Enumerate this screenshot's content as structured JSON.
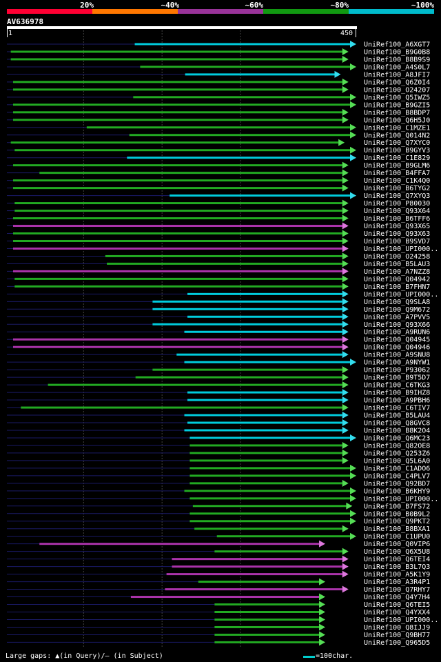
{
  "legend": {
    "labels": [
      "20%",
      "~40%",
      "~60%",
      "~80%",
      "~100%"
    ],
    "colors": [
      "#ff0033",
      "#ff7700",
      "#993399",
      "#119911",
      "#00bbcc"
    ]
  },
  "query": {
    "id": "AV636978",
    "start": "1",
    "end": "450"
  },
  "footer": {
    "gaps_text": "Large gaps: ▲(in Query)/– (in Subject)",
    "scale_text": "=100char."
  },
  "chart_data": {
    "type": "alignment",
    "title": "AV636978",
    "query_length": 450,
    "color_legend": [
      "20%",
      "~40%",
      "~60%",
      "~80%",
      "~100%"
    ],
    "hits": [
      {
        "label": "UniRef100_A6XGT7",
        "start": 165,
        "end": 450,
        "color": "cyan",
        "arrow": "cyan"
      },
      {
        "label": "UniRef100_B9G0B8",
        "start": 5,
        "end": 440,
        "color": "green",
        "arrow": "green"
      },
      {
        "label": "UniRef100_B8B9S9",
        "start": 5,
        "end": 440,
        "color": "green",
        "arrow": "green"
      },
      {
        "label": "UniRef100_A4S0L7",
        "start": 172,
        "end": 450,
        "color": "green",
        "arrow": "green"
      },
      {
        "label": "UniRef100_A8JFI7",
        "start": 230,
        "end": 430,
        "color": "cyan",
        "arrow": "cyan"
      },
      {
        "label": "UniRef100_Q6Z0I4",
        "start": 8,
        "end": 440,
        "color": "green",
        "arrow": "green"
      },
      {
        "label": "UniRef100_O24207",
        "start": 8,
        "end": 440,
        "color": "green",
        "arrow": "green"
      },
      {
        "label": "UniRef100_Q5IWZ5",
        "start": 163,
        "end": 450,
        "color": "green",
        "arrow": "green"
      },
      {
        "label": "UniRef100_B9GZI5",
        "start": 8,
        "end": 450,
        "color": "green",
        "arrow": "green"
      },
      {
        "label": "UniRef100_B8BDP7",
        "start": 8,
        "end": 440,
        "color": "green",
        "arrow": "green"
      },
      {
        "label": "UniRef100_Q6H5J0",
        "start": 8,
        "end": 440,
        "color": "green",
        "arrow": "green"
      },
      {
        "label": "UniRef100_C1MZE1",
        "start": 103,
        "end": 450,
        "color": "green",
        "arrow": "green"
      },
      {
        "label": "UniRef100_Q014N2",
        "start": 158,
        "end": 450,
        "color": "green",
        "arrow": "green"
      },
      {
        "label": "UniRef100_Q7XYC0",
        "start": 5,
        "end": 435,
        "color": "green",
        "arrow": "green"
      },
      {
        "label": "UniRef100_B9GYV3",
        "start": 10,
        "end": 450,
        "color": "green",
        "arrow": "green"
      },
      {
        "label": "UniRef100_C1E829",
        "start": 155,
        "end": 450,
        "color": "cyan",
        "arrow": "cyan"
      },
      {
        "label": "UniRef100_B9GLM6",
        "start": 8,
        "end": 440,
        "color": "green",
        "arrow": "green"
      },
      {
        "label": "UniRef100_B4FFA7",
        "start": 42,
        "end": 440,
        "color": "green",
        "arrow": "green"
      },
      {
        "label": "UniRef100_C1K4Q0",
        "start": 8,
        "end": 440,
        "color": "green",
        "arrow": "green"
      },
      {
        "label": "UniRef100_B6TYG2",
        "start": 8,
        "end": 440,
        "color": "green",
        "arrow": "green"
      },
      {
        "label": "UniRef100_Q7XYQ3",
        "start": 210,
        "end": 450,
        "color": "cyan",
        "arrow": "cyan"
      },
      {
        "label": "UniRef100_P80030",
        "start": 10,
        "end": 440,
        "color": "green",
        "arrow": "green"
      },
      {
        "label": "UniRef100_Q93X64",
        "start": 10,
        "end": 440,
        "color": "green",
        "arrow": "green"
      },
      {
        "label": "UniRef100_B6TFF6",
        "start": 8,
        "end": 440,
        "color": "green",
        "arrow": "green"
      },
      {
        "label": "UniRef100_Q93X65",
        "start": 8,
        "end": 440,
        "color": "purple",
        "arrow": "purple"
      },
      {
        "label": "UniRef100_Q93X63",
        "start": 8,
        "end": 440,
        "color": "green",
        "arrow": "green"
      },
      {
        "label": "UniRef100_B9SVD7",
        "start": 8,
        "end": 440,
        "color": "green",
        "arrow": "green"
      },
      {
        "label": "UniRef100_UPI000..",
        "start": 8,
        "end": 440,
        "color": "purple",
        "arrow": "purple"
      },
      {
        "label": "UniRef100_O24258",
        "start": 127,
        "end": 440,
        "color": "green",
        "arrow": "green"
      },
      {
        "label": "UniRef100_B5LAU3",
        "start": 129,
        "end": 440,
        "color": "green",
        "arrow": "green"
      },
      {
        "label": "UniRef100_A7NZZ8",
        "start": 8,
        "end": 440,
        "color": "purple",
        "arrow": "purple"
      },
      {
        "label": "UniRef100_Q04942",
        "start": 10,
        "end": 440,
        "color": "green",
        "arrow": "green"
      },
      {
        "label": "UniRef100_B7FHN7",
        "start": 10,
        "end": 440,
        "color": "green",
        "arrow": "green"
      },
      {
        "label": "UniRef100_UPI000..",
        "start": 233,
        "end": 440,
        "color": "cyan",
        "arrow": "cyan"
      },
      {
        "label": "UniRef100_Q9SLA8",
        "start": 188,
        "end": 440,
        "color": "cyan",
        "arrow": "cyan"
      },
      {
        "label": "UniRef100_Q9M672",
        "start": 188,
        "end": 440,
        "color": "cyan",
        "arrow": "cyan"
      },
      {
        "label": "UniRef100_A7PVV5",
        "start": 233,
        "end": 440,
        "color": "cyan",
        "arrow": "cyan"
      },
      {
        "label": "UniRef100_Q93X66",
        "start": 188,
        "end": 440,
        "color": "cyan",
        "arrow": "cyan"
      },
      {
        "label": "UniRef100_A9RUN6",
        "start": 229,
        "end": 440,
        "color": "cyan",
        "arrow": "cyan"
      },
      {
        "label": "UniRef100_Q04945",
        "start": 8,
        "end": 440,
        "color": "purple",
        "arrow": "purple"
      },
      {
        "label": "UniRef100_Q04946",
        "start": 8,
        "end": 440,
        "color": "purple",
        "arrow": "purple"
      },
      {
        "label": "UniRef100_A9SNU8",
        "start": 219,
        "end": 440,
        "color": "cyan",
        "arrow": "cyan"
      },
      {
        "label": "UniRef100_A9NYW1",
        "start": 229,
        "end": 450,
        "color": "cyan",
        "arrow": "cyan"
      },
      {
        "label": "UniRef100_P93062",
        "start": 188,
        "end": 440,
        "color": "green",
        "arrow": "green"
      },
      {
        "label": "UniRef100_B9T5D7",
        "start": 166,
        "end": 440,
        "color": "green",
        "arrow": "green"
      },
      {
        "label": "UniRef100_C6TKG3",
        "start": 53,
        "end": 440,
        "color": "green",
        "arrow": "green"
      },
      {
        "label": "UniRef100_B9IHZ8",
        "start": 233,
        "end": 440,
        "color": "cyan",
        "arrow": "cyan"
      },
      {
        "label": "UniRef100_A9PBH6",
        "start": 233,
        "end": 440,
        "color": "cyan",
        "arrow": "cyan"
      },
      {
        "label": "UniRef100_C6TIV7",
        "start": 18,
        "end": 440,
        "color": "green",
        "arrow": "green"
      },
      {
        "label": "UniRef100_B5LAU4",
        "start": 229,
        "end": 440,
        "color": "cyan",
        "arrow": "cyan"
      },
      {
        "label": "UniRef100_Q8GVC8",
        "start": 233,
        "end": 440,
        "color": "cyan",
        "arrow": "cyan"
      },
      {
        "label": "UniRef100_B8K2O4",
        "start": 229,
        "end": 440,
        "color": "cyan",
        "arrow": "cyan"
      },
      {
        "label": "UniRef100_Q6MC23",
        "start": 236,
        "end": 450,
        "color": "cyan",
        "arrow": "cyan"
      },
      {
        "label": "UniRef100_Q82OE8",
        "start": 236,
        "end": 440,
        "color": "green",
        "arrow": "green"
      },
      {
        "label": "UniRef100_Q253Z6",
        "start": 236,
        "end": 440,
        "color": "green",
        "arrow": "green"
      },
      {
        "label": "UniRef100_Q5L6A0",
        "start": 236,
        "end": 440,
        "color": "green",
        "arrow": "green"
      },
      {
        "label": "UniRef100_C1ADO6",
        "start": 236,
        "end": 450,
        "color": "green",
        "arrow": "green"
      },
      {
        "label": "UniRef100_C4PLV7",
        "start": 236,
        "end": 450,
        "color": "green",
        "arrow": "green"
      },
      {
        "label": "UniRef100_Q92BD7",
        "start": 236,
        "end": 440,
        "color": "green",
        "arrow": "green"
      },
      {
        "label": "UniRef100_B6KHY9",
        "start": 229,
        "end": 450,
        "color": "green",
        "arrow": "green"
      },
      {
        "label": "UniRef100_UPI000..",
        "start": 236,
        "end": 450,
        "color": "green",
        "arrow": "green"
      },
      {
        "label": "UniRef100_B7FS72",
        "start": 240,
        "end": 445,
        "color": "green",
        "arrow": "green"
      },
      {
        "label": "UniRef100_B0B9L2",
        "start": 236,
        "end": 450,
        "color": "green",
        "arrow": "green"
      },
      {
        "label": "UniRef100_Q9PKT2",
        "start": 236,
        "end": 450,
        "color": "green",
        "arrow": "green"
      },
      {
        "label": "UniRef100_B8BXA1",
        "start": 242,
        "end": 440,
        "color": "green",
        "arrow": "green"
      },
      {
        "label": "UniRef100_C1UPU0",
        "start": 271,
        "end": 450,
        "color": "green",
        "arrow": "green"
      },
      {
        "label": "UniRef100_Q0VIP6",
        "start": 42,
        "end": 410,
        "color": "purple",
        "arrow": "purple"
      },
      {
        "label": "UniRef100_Q6X5U8",
        "start": 268,
        "end": 440,
        "color": "green",
        "arrow": "green"
      },
      {
        "label": "UniRef100_Q6TEI4",
        "start": 213,
        "end": 440,
        "color": "purple",
        "arrow": "purple"
      },
      {
        "label": "UniRef100_B3L7Q3",
        "start": 213,
        "end": 440,
        "color": "purple",
        "arrow": "purple"
      },
      {
        "label": "UniRef100_A5K1Y9",
        "start": 206,
        "end": 440,
        "color": "purple",
        "arrow": "purple"
      },
      {
        "label": "UniRef100_A3R4P1",
        "start": 247,
        "end": 410,
        "color": "green",
        "arrow": "green"
      },
      {
        "label": "UniRef100_Q7RHY7",
        "start": 204,
        "end": 440,
        "color": "purple",
        "arrow": "purple"
      },
      {
        "label": "UniRef100_Q4Y7H4",
        "start": 160,
        "end": 410,
        "color": "purple",
        "arrow": "green"
      },
      {
        "label": "UniRef100_Q6TEI5",
        "start": 268,
        "end": 410,
        "color": "green",
        "arrow": "green"
      },
      {
        "label": "UniRef100_Q4YXX4",
        "start": 268,
        "end": 410,
        "color": "green",
        "arrow": "green"
      },
      {
        "label": "UniRef100_UPI000..",
        "start": 268,
        "end": 410,
        "color": "green",
        "arrow": "green"
      },
      {
        "label": "UniRef100_Q8IJJ9",
        "start": 268,
        "end": 410,
        "color": "green",
        "arrow": "green"
      },
      {
        "label": "UniRef100_Q9BH77",
        "start": 268,
        "end": 410,
        "color": "green",
        "arrow": "green"
      },
      {
        "label": "UniRef100_Q965D5",
        "start": 268,
        "end": 410,
        "color": "green",
        "arrow": "green"
      }
    ]
  }
}
